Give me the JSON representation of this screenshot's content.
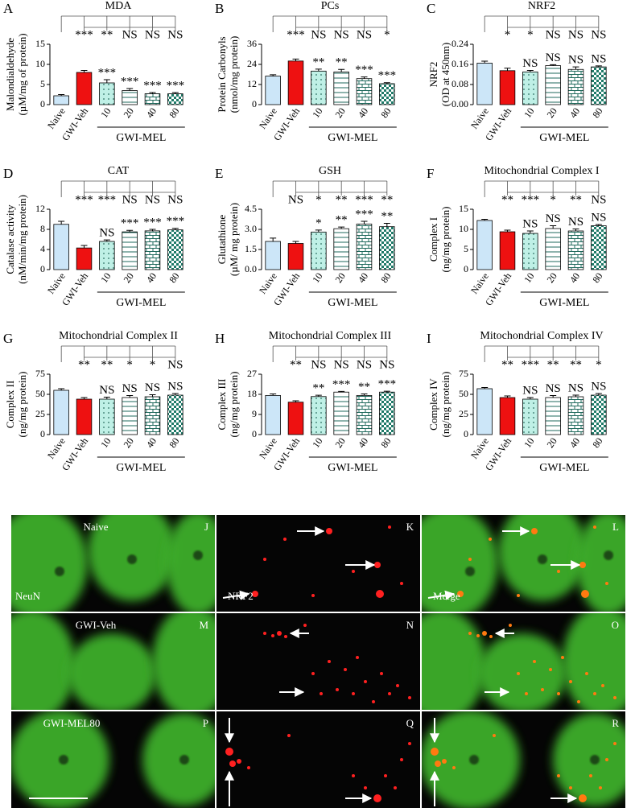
{
  "chart_data": [
    {
      "type": "bar",
      "letter": "A",
      "title": "MDA",
      "ylabel": [
        "Malondialdehyde",
        "(µM/mg of protein)"
      ],
      "group_label": "GWI-MEL",
      "categories": [
        "Naive",
        "GWI-Veh",
        "10",
        "20",
        "40",
        "80"
      ],
      "values": [
        2.2,
        8.0,
        5.4,
        3.5,
        2.7,
        2.7
      ],
      "errors": [
        0.3,
        0.5,
        0.8,
        0.5,
        0.3,
        0.3
      ],
      "sig_vs_naive": [
        null,
        "***",
        "**",
        "NS",
        "NS",
        "NS"
      ],
      "sig_vs_veh": [
        null,
        null,
        "***",
        "***",
        "***",
        "***"
      ],
      "colors": [
        "#cce6f8",
        "#ee1111",
        "#bff0e6",
        "#ffffff",
        "#ffffff",
        "#1f7a68"
      ],
      "ylim": [
        0,
        15
      ],
      "yticks": [
        0,
        5,
        10,
        15
      ]
    },
    {
      "type": "bar",
      "letter": "B",
      "title": "PCs",
      "ylabel": [
        "Protein Carbonyls",
        "(nmol/mg protein)"
      ],
      "group_label": "GWI-MEL",
      "categories": [
        "Naive",
        "GWI-Veh",
        "10",
        "20",
        "40",
        "80"
      ],
      "values": [
        17,
        26,
        20,
        19.5,
        15.5,
        12.5
      ],
      "errors": [
        0.8,
        1.2,
        1.2,
        1.5,
        1,
        0.6
      ],
      "sig_vs_naive": [
        null,
        "***",
        "NS",
        "NS",
        "NS",
        "*"
      ],
      "sig_vs_veh": [
        null,
        null,
        "**",
        "**",
        "***",
        "***"
      ],
      "colors": [
        "#cce6f8",
        "#ee1111",
        "#bff0e6",
        "#ffffff",
        "#ffffff",
        "#1f7a68"
      ],
      "ylim": [
        0,
        36
      ],
      "yticks": [
        0,
        12,
        24,
        36
      ]
    },
    {
      "type": "bar",
      "letter": "C",
      "title": "NRF2",
      "ylabel": [
        "NRF2",
        "(OD at 450nm)"
      ],
      "group_label": "GWI-MEL",
      "categories": [
        "Naive",
        "GWI-Veh",
        "10",
        "20",
        "40",
        "80"
      ],
      "values": [
        0.165,
        0.135,
        0.13,
        0.155,
        0.14,
        0.15
      ],
      "errors": [
        0.008,
        0.01,
        0.006,
        0.004,
        0.01,
        0.004
      ],
      "sig_vs_naive": [
        null,
        "*",
        "*",
        "NS",
        "NS",
        "NS"
      ],
      "sig_vs_veh": [
        null,
        null,
        "NS",
        "NS",
        "NS",
        "NS"
      ],
      "colors": [
        "#cce6f8",
        "#ee1111",
        "#bff0e6",
        "#ffffff",
        "#ffffff",
        "#1f7a68"
      ],
      "ylim": [
        0,
        0.24
      ],
      "yticks": [
        {
          "value": 0,
          "label": "0.00"
        },
        {
          "value": 0.08,
          "label": "0.08"
        },
        {
          "value": 0.16,
          "label": "0.16"
        },
        {
          "value": 0.24,
          "label": "0.24"
        }
      ]
    },
    {
      "type": "bar",
      "letter": "D",
      "title": "CAT",
      "ylabel": [
        "Catalase activity",
        "(nM/min/mg protein)"
      ],
      "group_label": "GWI-MEL",
      "categories": [
        "Naive",
        "GWI-Veh",
        "10",
        "20",
        "40",
        "80"
      ],
      "values": [
        9.0,
        4.3,
        5.6,
        7.5,
        7.7,
        7.9
      ],
      "errors": [
        0.6,
        0.5,
        0.3,
        0.3,
        0.3,
        0.3
      ],
      "sig_vs_naive": [
        null,
        "***",
        "***",
        "NS",
        "NS",
        "NS"
      ],
      "sig_vs_veh": [
        null,
        null,
        "NS",
        "***",
        "***",
        "***"
      ],
      "colors": [
        "#cce6f8",
        "#ee1111",
        "#bff0e6",
        "#ffffff",
        "#ffffff",
        "#1f7a68"
      ],
      "ylim": [
        0,
        12
      ],
      "yticks": [
        0,
        4,
        8,
        12
      ]
    },
    {
      "type": "bar",
      "letter": "E",
      "title": "GSH",
      "ylabel": [
        "Glutathione",
        "(µM/ mg protein)"
      ],
      "group_label": "GWI-MEL",
      "categories": [
        "Naive",
        "GWI-Veh",
        "10",
        "20",
        "40",
        "80"
      ],
      "values": [
        2.1,
        1.95,
        2.8,
        3.05,
        3.4,
        3.2
      ],
      "errors": [
        0.25,
        0.15,
        0.15,
        0.12,
        0.2,
        0.25
      ],
      "sig_vs_naive": [
        null,
        "NS",
        "*",
        "**",
        "***",
        "**"
      ],
      "sig_vs_veh": [
        null,
        null,
        "*",
        "**",
        "***",
        "**"
      ],
      "colors": [
        "#cce6f8",
        "#ee1111",
        "#bff0e6",
        "#ffffff",
        "#ffffff",
        "#1f7a68"
      ],
      "ylim": [
        0,
        4.5
      ],
      "yticks": [
        {
          "value": 0,
          "label": "0.0"
        },
        {
          "value": 1.5,
          "label": "1.5"
        },
        {
          "value": 3,
          "label": "3.0"
        },
        4.5
      ]
    },
    {
      "type": "bar",
      "letter": "F",
      "title": "Mitochondrial Complex I",
      "ylabel": [
        "Complex I",
        "(ng/mg protein)"
      ],
      "group_label": "GWI-MEL",
      "categories": [
        "Naive",
        "GWI-Veh",
        "10",
        "20",
        "40",
        "80"
      ],
      "values": [
        12.2,
        9.4,
        9.0,
        10.2,
        9.6,
        10.9
      ],
      "errors": [
        0.3,
        0.4,
        0.6,
        0.7,
        0.5,
        0.3
      ],
      "sig_vs_naive": [
        null,
        "**",
        "***",
        "*",
        "**",
        "NS"
      ],
      "sig_vs_veh": [
        null,
        null,
        "NS",
        "NS",
        "NS",
        "NS"
      ],
      "colors": [
        "#cce6f8",
        "#ee1111",
        "#bff0e6",
        "#ffffff",
        "#ffffff",
        "#1f7a68"
      ],
      "ylim": [
        0,
        15
      ],
      "yticks": [
        0,
        5,
        10,
        15
      ]
    },
    {
      "type": "bar",
      "letter": "G",
      "title": "Mitochondrial Complex II",
      "ylabel": [
        "Complex II",
        "(ng/mg protein)"
      ],
      "group_label": "GWI-MEL",
      "categories": [
        "Naive",
        "GWI-Veh",
        "10",
        "20",
        "40",
        "80"
      ],
      "values": [
        55,
        44,
        44,
        46,
        47,
        49
      ],
      "errors": [
        2,
        2,
        2.5,
        2.5,
        2.5,
        2
      ],
      "sig_vs_naive": [
        null,
        "**",
        "**",
        "*",
        "*",
        "NS"
      ],
      "sig_vs_veh": [
        null,
        null,
        "NS",
        "NS",
        "NS",
        "NS"
      ],
      "colors": [
        "#cce6f8",
        "#ee1111",
        "#bff0e6",
        "#ffffff",
        "#ffffff",
        "#1f7a68"
      ],
      "ylim": [
        0,
        75
      ],
      "yticks": [
        0,
        25,
        50,
        75
      ]
    },
    {
      "type": "bar",
      "letter": "H",
      "title": "Mitochondrial Complex III",
      "ylabel": [
        "Complex III",
        "(ng/mg protein)"
      ],
      "group_label": "GWI-MEL",
      "categories": [
        "Naive",
        "GWI-Veh",
        "10",
        "20",
        "40",
        "80"
      ],
      "values": [
        17.5,
        14.5,
        17,
        19,
        17.5,
        19
      ],
      "errors": [
        0.7,
        0.6,
        0.6,
        0.3,
        0.7,
        0.4
      ],
      "sig_vs_naive": [
        null,
        "**",
        "NS",
        "NS",
        "NS",
        "NS"
      ],
      "sig_vs_veh": [
        null,
        null,
        "**",
        "***",
        "**",
        "***"
      ],
      "colors": [
        "#cce6f8",
        "#ee1111",
        "#bff0e6",
        "#ffffff",
        "#ffffff",
        "#1f7a68"
      ],
      "ylim": [
        0,
        27
      ],
      "yticks": [
        0,
        9,
        18,
        27
      ]
    },
    {
      "type": "bar",
      "letter": "I",
      "title": "Mitochondrial Complex IV",
      "ylabel": [
        "Complex IV",
        "(ng/mg protein)"
      ],
      "group_label": "GWI-MEL",
      "categories": [
        "Naive",
        "GWI-Veh",
        "10",
        "20",
        "40",
        "80"
      ],
      "values": [
        57,
        46,
        44,
        46,
        47,
        49
      ],
      "errors": [
        1.5,
        2,
        2,
        2.5,
        2,
        2
      ],
      "sig_vs_naive": [
        null,
        "**",
        "***",
        "**",
        "**",
        "*"
      ],
      "sig_vs_veh": [
        null,
        null,
        "NS",
        "NS",
        "NS",
        "NS"
      ],
      "colors": [
        "#cce6f8",
        "#ee1111",
        "#bff0e6",
        "#ffffff",
        "#ffffff",
        "#1f7a68"
      ],
      "ylim": [
        0,
        75
      ],
      "yticks": [
        0,
        25,
        50,
        75
      ]
    }
  ],
  "image_panels": {
    "channels": [
      "NeuN",
      "NRF2",
      "Merge"
    ],
    "rows": [
      {
        "condition": "Naive",
        "letters": [
          "J",
          "K",
          "L"
        ]
      },
      {
        "condition": "GWI-Veh",
        "letters": [
          "M",
          "N",
          "O"
        ]
      },
      {
        "condition": "GWI-MEL80",
        "letters": [
          "P",
          "Q",
          "R"
        ]
      }
    ]
  }
}
